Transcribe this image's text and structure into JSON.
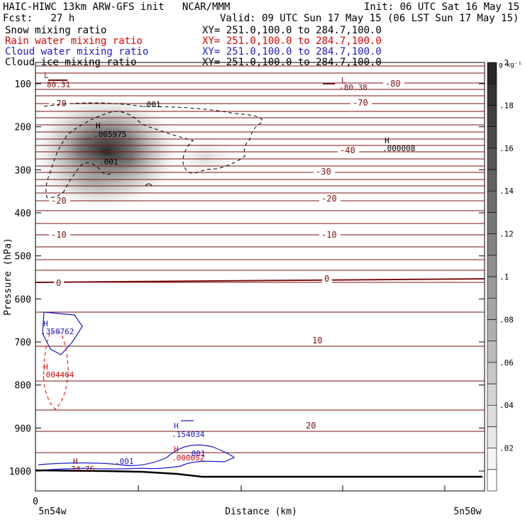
{
  "header": {
    "title": "HAIC-HIWC 13km ARW-GFS init   NCAR/MMM",
    "init": "Init: 06 UTC Sat 16 May 15",
    "fcst": "Fcst:   27 h",
    "valid": "Valid: 09 UTC Sun 17 May 15 (06 LST Sun 17 May 15)",
    "fields": [
      {
        "name": "Snow mixing ratio",
        "xy": "XY= 251.0,100.0 to 284.7,100.0",
        "color": "#000000"
      },
      {
        "name": "Rain water mixing ratio",
        "xy": "XY= 251.0,100.0 to 284.7,100.0",
        "color": "#e00000"
      },
      {
        "name": "Cloud water mixing ratio",
        "xy": "XY= 251.0,100.0 to 284.7,100.0",
        "color": "#1a1acc"
      },
      {
        "name": "Cloud ice mixing ratio",
        "xy": "XY= 251.0,100.0 to 284.7,100.0",
        "color": "#000000"
      }
    ]
  },
  "chart_data": {
    "type": "cross-section",
    "ylabel": "Pressure (hPa)",
    "xlabel": "Distance (km)",
    "x_tick_labels": [
      "0"
    ],
    "x_left_label": "5n54w",
    "x_right_label": "5n50w",
    "y_ticks": [
      100,
      200,
      300,
      400,
      500,
      600,
      700,
      800,
      900,
      1000
    ],
    "ylim": [
      1090,
      0
    ],
    "colorbar": {
      "unit": "g kg⁻¹",
      "ticks": [
        ".02",
        ".04",
        ".06",
        ".08",
        ".1",
        ".12",
        ".14",
        ".16",
        ".18",
        ".2"
      ],
      "levels": 20,
      "max": 0.2
    },
    "temperature_contours": [
      {
        "value": -80,
        "label": "-80"
      },
      {
        "value": -70,
        "label": "-70"
      },
      {
        "value": -40,
        "label": "-40"
      },
      {
        "value": -30,
        "label": "-30"
      },
      {
        "value": -20,
        "label": "-20"
      },
      {
        "value": -10,
        "label": "-10"
      },
      {
        "value": 0,
        "label": "0"
      },
      {
        "value": 10,
        "label": "10"
      },
      {
        "value": 20,
        "label": "20"
      }
    ],
    "annotations": [
      {
        "kind": "L",
        "value": "80.31",
        "color": "#7a1010"
      },
      {
        "kind": "L",
        "value": "-80.38",
        "color": "#7a1010"
      },
      {
        "kind": "H",
        "value": ".005975",
        "color": "#000000"
      },
      {
        "kind": "H",
        "value": ".000008",
        "color": "#000000"
      },
      {
        "kind": "H",
        "value": ".350762",
        "color": "#1a1acc"
      },
      {
        "kind": "H",
        "value": ".004464",
        "color": "#e00000"
      },
      {
        "kind": "H",
        "value": ".154034",
        "color": "#1a1acc"
      },
      {
        "kind": "H",
        "value": ".000052",
        "color": "#e00000"
      },
      {
        "kind": "H",
        "value": "24.76",
        "color": "#7a1010"
      }
    ],
    "contour_labels": [
      {
        "text": ".001",
        "color": "#000000"
      },
      {
        "text": ".001",
        "color": "#000000"
      },
      {
        "text": ".001",
        "color": "#1a1acc"
      },
      {
        "text": ".001",
        "color": "#1a1acc"
      }
    ],
    "colors": {
      "temperature": "#7a1010",
      "terrain": "#000000"
    }
  }
}
